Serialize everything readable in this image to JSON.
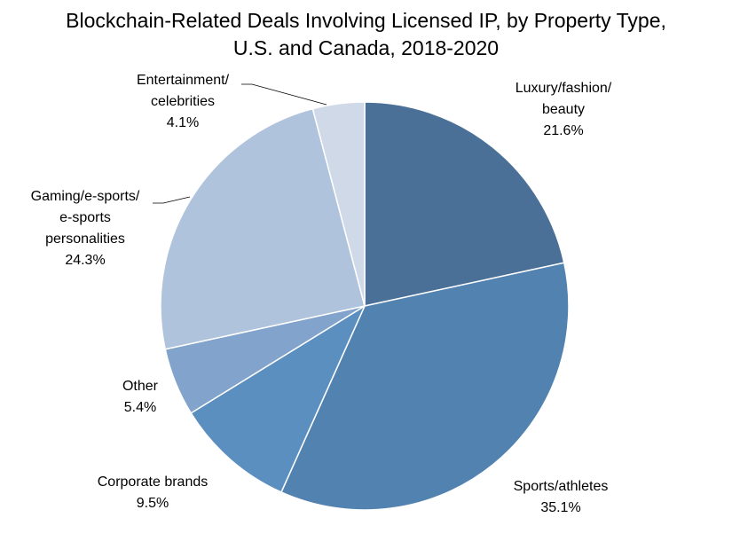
{
  "chart_data": {
    "type": "pie",
    "title_lines": [
      "Blockchain-Related Deals Involving Licensed IP, by Property Type,",
      "U.S. and Canada, 2018-2020"
    ],
    "unit": "%",
    "start_angle_deg": 0,
    "direction": "clockwise",
    "slices": [
      {
        "label_lines": [
          "Luxury/fashion/",
          "beauty"
        ],
        "value": 21.6,
        "value_label": "21.6%",
        "color": "#4a7098"
      },
      {
        "label_lines": [
          "Sports/athletes"
        ],
        "value": 35.1,
        "value_label": "35.1%",
        "color": "#5282b0"
      },
      {
        "label_lines": [
          "Corporate brands"
        ],
        "value": 9.5,
        "value_label": "9.5%",
        "color": "#5b8fc0"
      },
      {
        "label_lines": [
          "Other"
        ],
        "value": 5.4,
        "value_label": "5.4%",
        "color": "#82a3cb"
      },
      {
        "label_lines": [
          "Gaming/e-sports/",
          "e-sports",
          "personalities"
        ],
        "value": 24.3,
        "value_label": "24.3%",
        "color": "#afc3dc"
      },
      {
        "label_lines": [
          "Entertainment/",
          "celebrities"
        ],
        "value": 4.1,
        "value_label": "4.1%",
        "color": "#cfd9e7"
      }
    ]
  }
}
